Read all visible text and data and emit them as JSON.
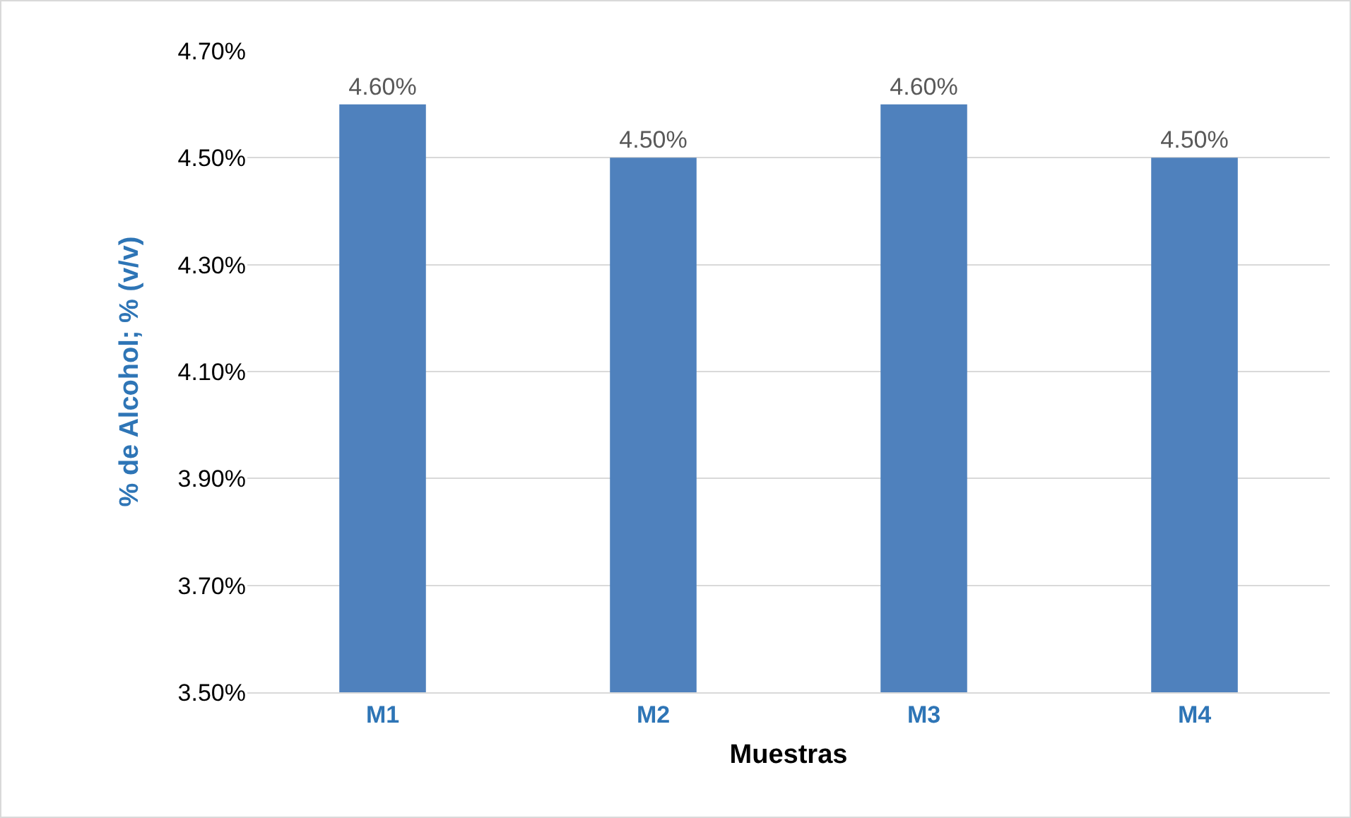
{
  "chart_data": {
    "type": "bar",
    "xlabel": "Muestras",
    "ylabel": "% de Alcohol; % (v/v)",
    "categories": [
      "M1",
      "M2",
      "M3",
      "M4"
    ],
    "values": [
      4.6,
      4.5,
      4.6,
      4.5
    ],
    "value_labels": [
      "4.60%",
      "4.50%",
      "4.60%",
      "4.50%"
    ],
    "color": "#4f81bd",
    "ylim": [
      3.5,
      4.7
    ],
    "yticks": [
      {
        "value": 3.5,
        "label": "3.50%"
      },
      {
        "value": 3.7,
        "label": "3.70%"
      },
      {
        "value": 3.9,
        "label": "3.90%"
      },
      {
        "value": 4.1,
        "label": "4.10%"
      },
      {
        "value": 4.3,
        "label": "4.30%"
      },
      {
        "value": 4.5,
        "label": "4.50%"
      },
      {
        "value": 4.7,
        "label": "4.70%"
      }
    ],
    "grid": "y"
  }
}
